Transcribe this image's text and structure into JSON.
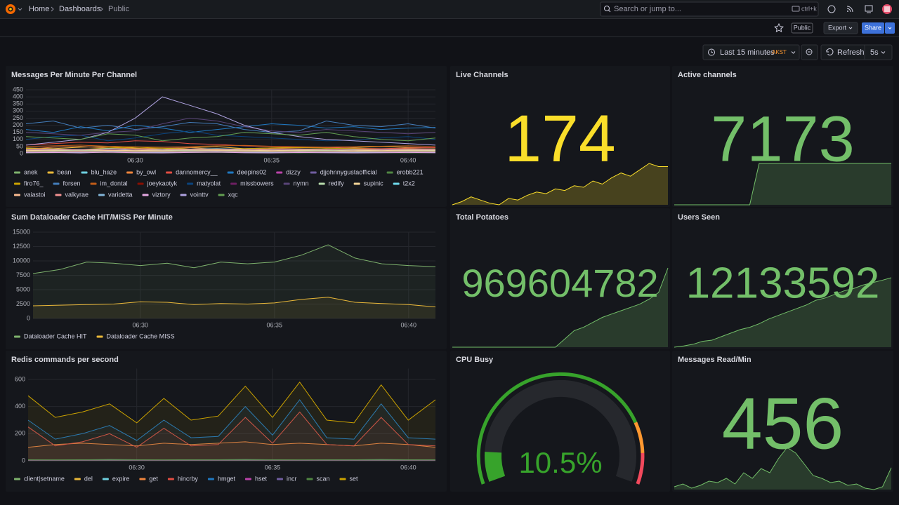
{
  "header": {
    "breadcrumbs": [
      "Home",
      "Dashboards",
      "Public"
    ],
    "search_placeholder": "Search or jump to...",
    "search_shortcut": "ctrl+k",
    "badge": "Public",
    "export": "Export",
    "share": "Share",
    "time_range": "Last 15 minutes",
    "timezone": "AKST",
    "refresh": "Refresh",
    "refresh_interval": "5s"
  },
  "chart_data": [
    {
      "type": "line",
      "title": "Messages Per Minute Per Channel",
      "x": [
        "06:26",
        "06:27",
        "06:28",
        "06:29",
        "06:30",
        "06:31",
        "06:32",
        "06:33",
        "06:34",
        "06:35",
        "06:36",
        "06:37",
        "06:38",
        "06:39",
        "06:40",
        "06:41"
      ],
      "xticks": [
        "06:30",
        "06:35",
        "06:40"
      ],
      "ylim": [
        0,
        450
      ],
      "yticks": [
        0,
        50,
        100,
        150,
        200,
        250,
        300,
        350,
        400,
        450
      ],
      "grid": true,
      "fill": false,
      "series": [
        {
          "name": "anek",
          "color": "#7EB26D",
          "values": [
            10,
            12,
            8,
            15,
            10,
            9,
            12,
            14,
            10,
            8,
            11,
            13,
            10,
            9,
            12,
            10
          ]
        },
        {
          "name": "bean",
          "color": "#EAB839",
          "values": [
            40,
            35,
            45,
            50,
            38,
            30,
            42,
            48,
            35,
            40,
            45,
            38,
            42,
            50,
            44,
            40
          ]
        },
        {
          "name": "blu_haze",
          "color": "#6ED0E0",
          "values": [
            20,
            25,
            18,
            22,
            30,
            28,
            20,
            24,
            26,
            22,
            18,
            25,
            30,
            28,
            22,
            20
          ]
        },
        {
          "name": "by_owl",
          "color": "#EF843C",
          "values": [
            30,
            45,
            50,
            40,
            35,
            38,
            42,
            30,
            28,
            35,
            40,
            45,
            38,
            30,
            35,
            32
          ]
        },
        {
          "name": "dannomercy__",
          "color": "#E24D42",
          "values": [
            60,
            70,
            80,
            75,
            90,
            85,
            70,
            65,
            55,
            50,
            45,
            40,
            38,
            35,
            40,
            42
          ]
        },
        {
          "name": "deepins02",
          "color": "#1F78C1",
          "values": [
            170,
            150,
            190,
            160,
            200,
            180,
            150,
            170,
            190,
            210,
            200,
            180,
            190,
            170,
            180,
            185
          ]
        },
        {
          "name": "dizzy",
          "color": "#BA43A9",
          "values": [
            15,
            18,
            20,
            22,
            18,
            15,
            12,
            16,
            20,
            18,
            15,
            14,
            16,
            18,
            20,
            17
          ]
        },
        {
          "name": "djjohnnygustaofficial",
          "color": "#705DA0",
          "values": [
            25,
            28,
            30,
            26,
            22,
            20,
            24,
            28,
            30,
            26,
            24,
            22,
            20,
            25,
            28,
            26
          ]
        },
        {
          "name": "erobb221",
          "color": "#508642",
          "values": [
            5,
            6,
            8,
            7,
            5,
            6,
            8,
            9,
            7,
            6,
            5,
            7,
            8,
            6,
            5,
            6
          ]
        },
        {
          "name": "firo76_",
          "color": "#CCA300",
          "values": [
            35,
            30,
            28,
            40,
            45,
            38,
            32,
            30,
            35,
            40,
            42,
            38,
            35,
            30,
            28,
            30
          ]
        },
        {
          "name": "forsen",
          "color": "#447EBC",
          "values": [
            210,
            230,
            180,
            200,
            170,
            190,
            220,
            210,
            170,
            150,
            160,
            230,
            200,
            190,
            210,
            180
          ]
        },
        {
          "name": "im_dontal",
          "color": "#C15C17",
          "values": [
            50,
            55,
            60,
            52,
            48,
            45,
            50,
            55,
            58,
            52,
            48,
            45,
            50,
            52,
            55,
            50
          ]
        },
        {
          "name": "joeykaotyk",
          "color": "#890F02",
          "values": [
            12,
            14,
            10,
            16,
            12,
            10,
            14,
            16,
            12,
            10,
            14,
            12,
            10,
            12,
            14,
            12
          ]
        },
        {
          "name": "matyolat",
          "color": "#0A437C",
          "values": [
            100,
            120,
            130,
            90,
            110,
            140,
            160,
            130,
            120,
            110,
            100,
            90,
            95,
            110,
            120,
            100
          ]
        },
        {
          "name": "missbowers",
          "color": "#6D1F62",
          "values": [
            8,
            10,
            12,
            9,
            8,
            10,
            12,
            11,
            9,
            8,
            10,
            12,
            9,
            8,
            10,
            9
          ]
        },
        {
          "name": "nymn",
          "color": "#584477",
          "values": [
            150,
            140,
            130,
            150,
            160,
            210,
            250,
            230,
            190,
            160,
            150,
            170,
            160,
            150,
            140,
            150
          ]
        },
        {
          "name": "redify",
          "color": "#B7DBAB",
          "values": [
            18,
            20,
            22,
            19,
            18,
            20,
            22,
            21,
            19,
            18,
            20,
            22,
            19,
            18,
            20,
            19
          ]
        },
        {
          "name": "supinic",
          "color": "#F4D598",
          "values": [
            22,
            24,
            26,
            23,
            22,
            24,
            26,
            25,
            23,
            22,
            24,
            26,
            23,
            22,
            24,
            23
          ]
        },
        {
          "name": "t2x2",
          "color": "#70DBED",
          "values": [
            30,
            32,
            28,
            35,
            30,
            28,
            32,
            35,
            30,
            28,
            32,
            30,
            28,
            30,
            32,
            30
          ]
        },
        {
          "name": "vaiastoi",
          "color": "#F9BA8F",
          "values": [
            16,
            18,
            15,
            20,
            16,
            15,
            18,
            20,
            16,
            15,
            18,
            16,
            15,
            16,
            18,
            16
          ]
        },
        {
          "name": "valkyrae",
          "color": "#F29191",
          "values": [
            28,
            30,
            26,
            32,
            28,
            26,
            30,
            32,
            28,
            26,
            30,
            28,
            26,
            28,
            30,
            28
          ]
        },
        {
          "name": "varidetta",
          "color": "#82B5D8",
          "values": [
            10,
            12,
            9,
            14,
            10,
            9,
            12,
            14,
            10,
            9,
            12,
            10,
            9,
            10,
            12,
            10
          ]
        },
        {
          "name": "viztory",
          "color": "#E5A8E2",
          "values": [
            6,
            8,
            5,
            10,
            6,
            5,
            8,
            10,
            6,
            5,
            8,
            6,
            5,
            6,
            8,
            6
          ]
        },
        {
          "name": "vointtv",
          "color": "#AEA2E0",
          "values": [
            60,
            80,
            100,
            150,
            250,
            400,
            340,
            280,
            200,
            150,
            120,
            100,
            90,
            80,
            70,
            60
          ]
        },
        {
          "name": "xqc",
          "color": "#629E51",
          "values": [
            120,
            110,
            100,
            140,
            130,
            90,
            110,
            120,
            150,
            140,
            130,
            150,
            120,
            100,
            90,
            110
          ]
        }
      ]
    },
    {
      "type": "line",
      "title": "Sum Dataloader Cache HIT/MISS Per Minute",
      "x": [
        "06:26",
        "06:27",
        "06:28",
        "06:29",
        "06:30",
        "06:31",
        "06:32",
        "06:33",
        "06:34",
        "06:35",
        "06:36",
        "06:37",
        "06:38",
        "06:39",
        "06:40",
        "06:41"
      ],
      "xticks": [
        "06:30",
        "06:35",
        "06:40"
      ],
      "ylim": [
        0,
        15000
      ],
      "yticks": [
        0,
        2500,
        5000,
        7500,
        10000,
        12500,
        15000
      ],
      "grid": true,
      "fill": true,
      "series": [
        {
          "name": "Dataloader Cache HIT",
          "color": "#7EB26D",
          "values": [
            7800,
            8500,
            9800,
            9600,
            9200,
            9600,
            8800,
            9800,
            9500,
            9800,
            11000,
            12800,
            10500,
            9500,
            9200,
            9000
          ]
        },
        {
          "name": "Dataloader Cache MISS",
          "color": "#EAB839",
          "values": [
            2200,
            2300,
            2400,
            2500,
            2900,
            2800,
            2400,
            2600,
            2500,
            2700,
            3300,
            3700,
            2800,
            2600,
            2400,
            2000
          ]
        }
      ]
    },
    {
      "type": "line",
      "title": "Redis commands per second",
      "x": [
        "06:26",
        "06:27",
        "06:28",
        "06:29",
        "06:30",
        "06:31",
        "06:32",
        "06:33",
        "06:34",
        "06:35",
        "06:36",
        "06:37",
        "06:38",
        "06:39",
        "06:40",
        "06:41"
      ],
      "xticks": [
        "06:30",
        "06:35",
        "06:40"
      ],
      "ylim": [
        0,
        680
      ],
      "yticks": [
        0,
        200,
        400,
        600
      ],
      "grid": true,
      "fill": true,
      "series": [
        {
          "name": "client|setname",
          "color": "#7EB26D",
          "values": [
            2,
            2,
            2,
            2,
            2,
            2,
            2,
            2,
            2,
            2,
            2,
            2,
            2,
            2,
            2,
            2
          ]
        },
        {
          "name": "del",
          "color": "#EAB839",
          "values": [
            5,
            5,
            4,
            5,
            6,
            5,
            5,
            4,
            5,
            6,
            5,
            5,
            4,
            5,
            5,
            5
          ]
        },
        {
          "name": "expire",
          "color": "#6ED0E0",
          "values": [
            8,
            7,
            8,
            9,
            8,
            7,
            8,
            8,
            9,
            8,
            7,
            8,
            8,
            9,
            8,
            8
          ]
        },
        {
          "name": "get",
          "color": "#EF843C",
          "values": [
            100,
            120,
            130,
            120,
            110,
            130,
            120,
            130,
            140,
            120,
            130,
            120,
            110,
            130,
            120,
            100
          ]
        },
        {
          "name": "hincrby",
          "color": "#E24D42",
          "values": [
            250,
            110,
            140,
            200,
            100,
            240,
            110,
            120,
            320,
            130,
            360,
            120,
            110,
            320,
            120,
            110
          ]
        },
        {
          "name": "hmget",
          "color": "#1F78C1",
          "values": [
            300,
            160,
            200,
            260,
            150,
            300,
            170,
            180,
            400,
            190,
            450,
            170,
            160,
            420,
            170,
            160
          ]
        },
        {
          "name": "hset",
          "color": "#BA43A9",
          "values": [
            3,
            3,
            3,
            3,
            3,
            3,
            3,
            3,
            3,
            3,
            3,
            3,
            3,
            3,
            3,
            3
          ]
        },
        {
          "name": "incr",
          "color": "#705DA0",
          "values": [
            4,
            4,
            4,
            4,
            4,
            4,
            4,
            4,
            4,
            4,
            4,
            4,
            4,
            4,
            4,
            4
          ]
        },
        {
          "name": "scan",
          "color": "#508642",
          "values": [
            6,
            6,
            6,
            6,
            6,
            6,
            6,
            6,
            6,
            6,
            6,
            6,
            6,
            6,
            6,
            6
          ]
        },
        {
          "name": "set",
          "color": "#CCA300",
          "values": [
            480,
            320,
            360,
            420,
            280,
            460,
            300,
            330,
            550,
            320,
            580,
            300,
            280,
            560,
            300,
            450
          ]
        }
      ]
    },
    {
      "type": "stat",
      "title": "Live Channels",
      "values": [
        174
      ],
      "color": "#FADE2A",
      "sparkline": [
        150,
        152,
        155,
        153,
        151,
        150,
        154,
        153,
        156,
        158,
        157,
        160,
        159,
        162,
        161,
        165,
        163,
        167,
        170,
        168,
        172,
        176,
        174,
        174
      ]
    },
    {
      "type": "stat",
      "title": "Active channels",
      "values": [
        7173
      ],
      "color": "#73BF69",
      "sparkline": [
        7050,
        7050,
        7050,
        7050,
        7050,
        7050,
        7050,
        7050,
        7050,
        7173,
        7173,
        7173,
        7173,
        7173,
        7173,
        7173,
        7173,
        7173,
        7173,
        7173,
        7173,
        7173,
        7173,
        7173
      ]
    },
    {
      "type": "stat",
      "title": "Total Potatoes",
      "values": [
        969604782
      ],
      "color": "#73BF69",
      "sparkline": [
        969600000,
        969600000,
        969600000,
        969600000,
        969600000,
        969600000,
        969600000,
        969600000,
        969600000,
        969600000,
        969600000,
        969600000,
        969600500,
        969601000,
        969601200,
        969601500,
        969601800,
        969602000,
        969602200,
        969602400,
        969602600,
        969602900,
        969603300,
        969604782
      ]
    },
    {
      "type": "stat",
      "title": "Users Seen",
      "values": [
        12133592
      ],
      "color": "#73BF69",
      "sparkline": [
        12133000,
        12133010,
        12133025,
        12133050,
        12133060,
        12133090,
        12133120,
        12133150,
        12133170,
        12133200,
        12133240,
        12133270,
        12133300,
        12133330,
        12133360,
        12133400,
        12133420,
        12133450,
        12133480,
        12133500,
        12133530,
        12133550,
        12133570,
        12133592
      ]
    },
    {
      "type": "gauge",
      "title": "CPU Busy",
      "values": [
        10.5
      ],
      "value_labels": [
        "10.5%"
      ],
      "ylim": [
        0,
        100
      ],
      "thresholds": [
        {
          "value": 0,
          "color": "#37A32B"
        },
        {
          "value": 80,
          "color": "#FF9830"
        },
        {
          "value": 90,
          "color": "#F2495C"
        }
      ]
    },
    {
      "type": "stat",
      "title": "Messages Read/Min",
      "values": [
        456
      ],
      "color": "#73BF69",
      "sparkline": [
        320,
        340,
        310,
        330,
        360,
        350,
        380,
        340,
        420,
        380,
        450,
        420,
        520,
        600,
        560,
        480,
        400,
        380,
        350,
        360,
        330,
        340,
        310,
        300,
        320,
        456
      ]
    }
  ]
}
